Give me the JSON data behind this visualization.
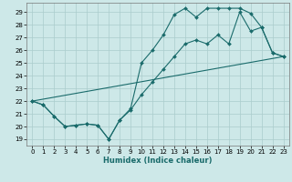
{
  "xlabel": "Humidex (Indice chaleur)",
  "bg_color": "#cde8e8",
  "grid_color": "#aacccc",
  "line_color": "#1a6b6b",
  "xlim": [
    -0.5,
    23.5
  ],
  "ylim": [
    18.5,
    29.7
  ],
  "x_ticks": [
    0,
    1,
    2,
    3,
    4,
    5,
    6,
    7,
    8,
    9,
    10,
    11,
    12,
    13,
    14,
    15,
    16,
    17,
    18,
    19,
    20,
    21,
    22,
    23
  ],
  "y_ticks": [
    19,
    20,
    21,
    22,
    23,
    24,
    25,
    26,
    27,
    28,
    29
  ],
  "line1_x": [
    0,
    1,
    2,
    3,
    4,
    5,
    6,
    7,
    8,
    9,
    10,
    11,
    12,
    13,
    14,
    15,
    16,
    17,
    18,
    19,
    20,
    21,
    22,
    23
  ],
  "line1_y": [
    22.0,
    21.7,
    20.8,
    20.0,
    20.1,
    20.2,
    20.1,
    19.0,
    20.5,
    21.4,
    25.0,
    26.0,
    27.2,
    28.8,
    29.3,
    28.6,
    29.3,
    29.3,
    29.3,
    29.3,
    28.9,
    27.8,
    25.8,
    25.5
  ],
  "line2_x": [
    0,
    23
  ],
  "line2_y": [
    22.0,
    25.5
  ],
  "line3_x": [
    0,
    1,
    2,
    3,
    4,
    5,
    6,
    7,
    8,
    9,
    10,
    11,
    12,
    13,
    14,
    15,
    16,
    17,
    18,
    19,
    20,
    21,
    22,
    23
  ],
  "line3_y": [
    22.0,
    21.7,
    20.8,
    20.0,
    20.1,
    20.2,
    20.1,
    19.0,
    20.5,
    21.3,
    22.5,
    23.5,
    24.5,
    25.5,
    26.5,
    26.8,
    26.5,
    27.2,
    26.5,
    29.0,
    27.5,
    27.8,
    25.8,
    25.5
  ]
}
